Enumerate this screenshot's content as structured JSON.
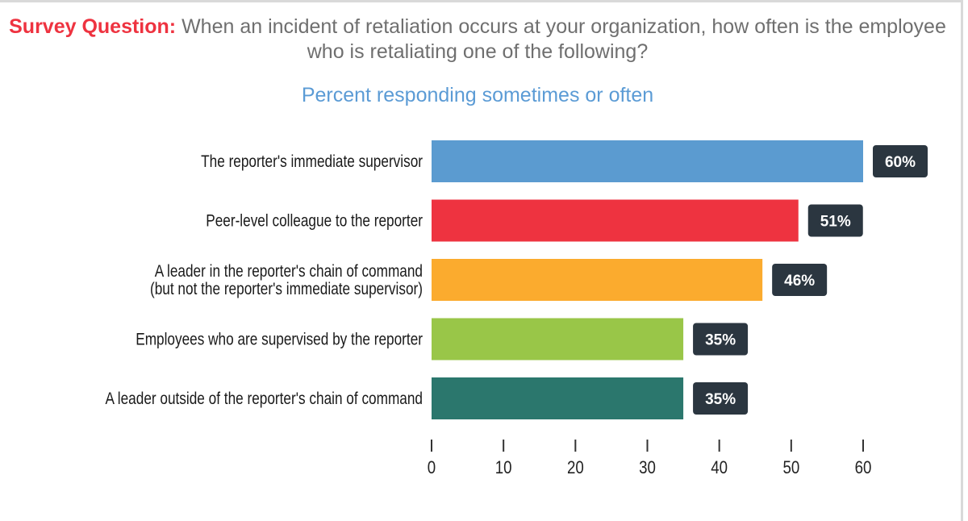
{
  "header": {
    "question_label": "Survey Question:",
    "question_text": "When an incident of retaliation occurs at your organization, how often is the employee who is retaliating one of the following?",
    "subtitle": "Percent responding sometimes or often"
  },
  "chart_data": {
    "type": "bar",
    "orientation": "horizontal",
    "title": "Percent responding sometimes or often",
    "categories": [
      [
        "The reporter's immediate supervisor"
      ],
      [
        "Peer-level colleague to the reporter"
      ],
      [
        "A leader in the reporter's chain of command",
        "(but not the reporter's immediate supervisor)"
      ],
      [
        "Employees who are supervised by the reporter"
      ],
      [
        "A leader outside of the reporter's chain of command"
      ]
    ],
    "values": [
      60,
      51,
      46,
      35,
      35
    ],
    "data_labels": [
      "60%",
      "51%",
      "46%",
      "35%",
      "35%"
    ],
    "colors": [
      "#5b9bd0",
      "#ee3340",
      "#fbab2e",
      "#99c648",
      "#2b776d"
    ],
    "label_box_color": "#2b3640",
    "xlim": [
      0,
      60
    ],
    "xticks": [
      0,
      10,
      20,
      30,
      40,
      50,
      60
    ],
    "grid": false,
    "legend": "none"
  }
}
